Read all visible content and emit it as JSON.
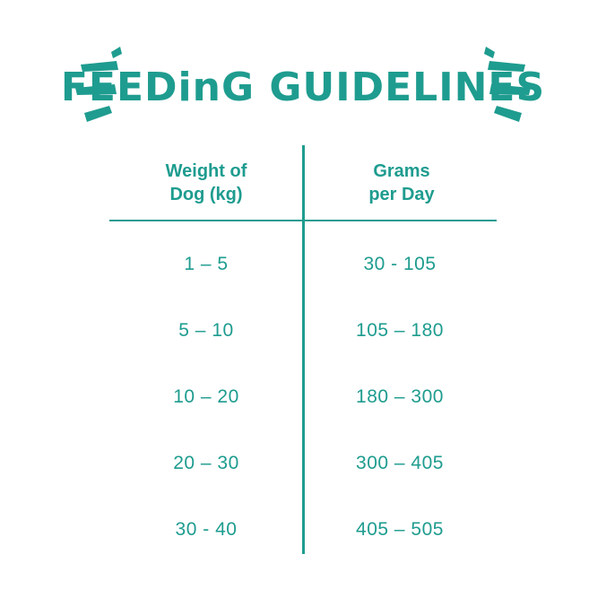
{
  "title": "FEEDinG GUIDELINES",
  "table": {
    "headers": [
      {
        "line1": "Weight of",
        "line2": "Dog (kg)"
      },
      {
        "line1": "Grams",
        "line2": "per Day"
      }
    ],
    "rows": [
      {
        "weight": "1 – 5",
        "grams": "30 - 105"
      },
      {
        "weight": "5 – 10",
        "grams": "105 – 180"
      },
      {
        "weight": "10 – 20",
        "grams": "180 – 300"
      },
      {
        "weight": "20 – 30",
        "grams": "300 – 405"
      },
      {
        "weight": "30 - 40",
        "grams": "405 – 505"
      }
    ]
  },
  "colors": {
    "accent": "#1e9c8f",
    "background": "#ffffff"
  },
  "icons": [
    "brush-strokes-left-icon",
    "brush-strokes-right-icon"
  ]
}
